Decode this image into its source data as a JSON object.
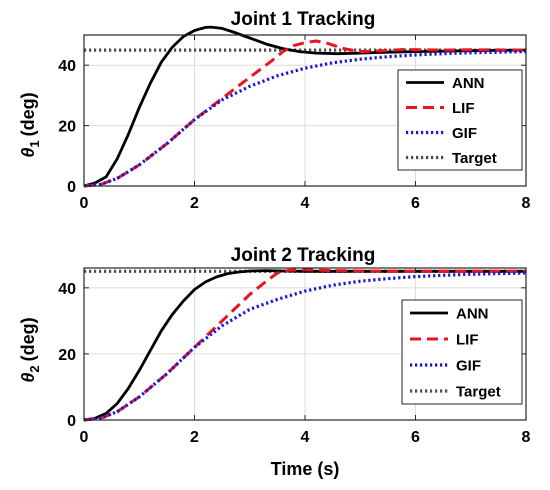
{
  "chart_data": [
    {
      "type": "line",
      "title": "Joint 1 Tracking",
      "xlabel": "",
      "ylabel_symbol": "θ",
      "ylabel_sub": "1",
      "ylabel_unit": "(deg)",
      "xlim": [
        0,
        8
      ],
      "ylim": [
        0,
        50
      ],
      "xticks": [
        0,
        2,
        4,
        6,
        8
      ],
      "yticks": [
        0,
        20,
        40
      ],
      "grid": true,
      "legend_position": "lower-right",
      "series": [
        {
          "name": "ANN",
          "color": "#000000",
          "style": "solid",
          "x": [
            0,
            0.2,
            0.4,
            0.6,
            0.8,
            1.0,
            1.2,
            1.4,
            1.6,
            1.8,
            2.0,
            2.2,
            2.3,
            2.5,
            2.7,
            3.0,
            3.3,
            3.6,
            3.9,
            4.2,
            4.6,
            5.0,
            5.5,
            6.0,
            7.0,
            8.0
          ],
          "y": [
            0,
            1,
            3,
            9,
            17,
            26,
            34,
            41,
            46,
            49.5,
            51.5,
            52.5,
            52.6,
            52.2,
            51,
            49,
            47,
            45.5,
            44.5,
            44,
            43.8,
            44,
            44.3,
            44.5,
            44.8,
            45
          ]
        },
        {
          "name": "LIF",
          "color": "#e8141e",
          "style": "dashed",
          "x": [
            0,
            0.3,
            0.6,
            1.0,
            1.5,
            2.0,
            2.5,
            3.0,
            3.4,
            3.6,
            3.8,
            4.0,
            4.2,
            4.4,
            4.7,
            5.0,
            5.4,
            5.8,
            6.5,
            7.0,
            8.0
          ],
          "y": [
            0,
            0.5,
            2.5,
            7,
            14,
            22,
            29,
            36,
            41.5,
            44.5,
            46.5,
            47.5,
            48,
            47.3,
            45.5,
            44.5,
            44.8,
            45.2,
            45,
            45.1,
            45
          ]
        },
        {
          "name": "GIF",
          "color": "#1414e0",
          "style": "dotted",
          "x": [
            0,
            0.3,
            0.6,
            1.0,
            1.5,
            2.0,
            2.5,
            3.0,
            3.5,
            4.0,
            4.5,
            5.0,
            5.5,
            6.0,
            6.5,
            7.0,
            7.5,
            8.0
          ],
          "y": [
            0,
            0.5,
            2.5,
            7,
            14,
            22,
            28.5,
            33,
            36.5,
            39,
            40.8,
            42,
            42.8,
            43.4,
            43.8,
            44.1,
            44.3,
            44.5
          ]
        },
        {
          "name": "Target",
          "color": "#4d4d4d",
          "style": "dotted",
          "x": [
            0,
            8
          ],
          "y": [
            45,
            45
          ]
        }
      ]
    },
    {
      "type": "line",
      "title": "Joint 2 Tracking",
      "xlabel": "Time (s)",
      "ylabel_symbol": "θ",
      "ylabel_sub": "2",
      "ylabel_unit": "(deg)",
      "xlim": [
        0,
        8
      ],
      "ylim": [
        0,
        46
      ],
      "xticks": [
        0,
        2,
        4,
        6,
        8
      ],
      "yticks": [
        0,
        20,
        40
      ],
      "grid": true,
      "legend_position": "lower-right",
      "series": [
        {
          "name": "ANN",
          "color": "#000000",
          "style": "solid",
          "x": [
            0,
            0.2,
            0.4,
            0.6,
            0.8,
            1.0,
            1.2,
            1.4,
            1.6,
            1.8,
            2.0,
            2.2,
            2.4,
            2.6,
            2.8,
            3.0,
            3.3,
            3.6,
            4.0,
            5.0,
            6.0,
            8.0
          ],
          "y": [
            0,
            0.5,
            2,
            5,
            9.5,
            15,
            21,
            27,
            32,
            36,
            39.5,
            41.8,
            43.3,
            44.3,
            44.8,
            45.1,
            45.2,
            45.1,
            45,
            45,
            45,
            45
          ]
        },
        {
          "name": "LIF",
          "color": "#e8141e",
          "style": "dashed",
          "x": [
            0,
            0.3,
            0.6,
            1.0,
            1.5,
            2.0,
            2.5,
            3.0,
            3.3,
            3.5,
            3.7,
            4.0,
            4.5,
            5.0,
            6.0,
            7.0,
            8.0
          ],
          "y": [
            0,
            0.5,
            2.5,
            7,
            14,
            22,
            30,
            38,
            42,
            44.5,
            45.3,
            45.5,
            45.2,
            45.1,
            45,
            45,
            45
          ]
        },
        {
          "name": "GIF",
          "color": "#1414e0",
          "style": "dotted",
          "x": [
            0,
            0.3,
            0.6,
            1.0,
            1.5,
            2.0,
            2.5,
            3.0,
            3.5,
            4.0,
            4.5,
            5.0,
            5.5,
            6.0,
            6.5,
            7.0,
            7.5,
            8.0
          ],
          "y": [
            0,
            0.5,
            2.5,
            7,
            14,
            22,
            28.5,
            33.5,
            36.5,
            39,
            40.8,
            42,
            42.8,
            43.4,
            43.8,
            44.1,
            44.3,
            44.5
          ]
        },
        {
          "name": "Target",
          "color": "#4d4d4d",
          "style": "dotted",
          "x": [
            0,
            8
          ],
          "y": [
            45,
            45
          ]
        }
      ]
    }
  ]
}
